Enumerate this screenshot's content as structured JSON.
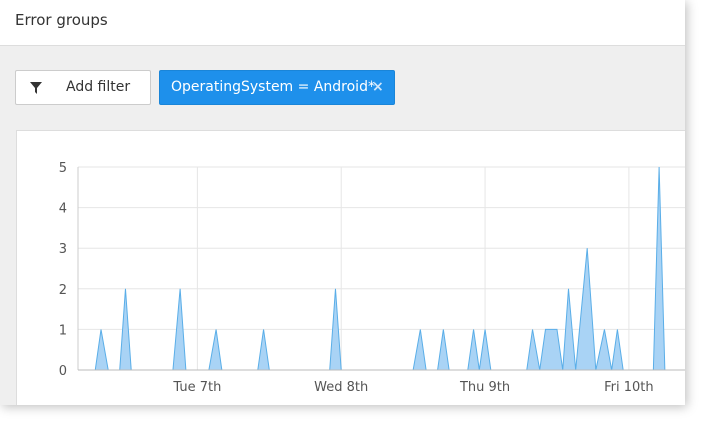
{
  "header": {
    "title": "Error groups"
  },
  "toolbar": {
    "add_filter": "Add filter",
    "active_filter": "OperatingSystem = Android*",
    "remove_filter": "×"
  },
  "chart_data": {
    "type": "area",
    "color": "#a9d3f5",
    "line_color": "#5aaee8",
    "x": [
      6.17,
      6.29,
      6.33,
      6.38,
      6.46,
      6.5,
      6.54,
      6.83,
      6.88,
      6.92,
      7.08,
      7.13,
      7.17,
      7.42,
      7.46,
      7.5,
      7.92,
      7.96,
      8.0,
      8.5,
      8.55,
      8.59,
      8.67,
      8.71,
      8.75,
      8.88,
      8.92,
      8.96,
      9.0,
      9.04,
      9.29,
      9.33,
      9.38,
      9.42,
      9.5,
      9.54,
      9.58,
      9.63,
      9.71,
      9.77,
      9.83,
      9.88,
      9.92,
      9.96,
      10.17,
      10.21,
      10.25,
      10.39
    ],
    "values": [
      0,
      0,
      1,
      0,
      0,
      2,
      0,
      0,
      2,
      0,
      0,
      1,
      0,
      0,
      1,
      0,
      0,
      2,
      0,
      0,
      1,
      0,
      0,
      1,
      0,
      0,
      1,
      0,
      1,
      0,
      0,
      1,
      0,
      1,
      1,
      0,
      2,
      0,
      3,
      0,
      1,
      0,
      1,
      0,
      0,
      5,
      0,
      0
    ],
    "xlim": [
      6.17,
      10.39
    ],
    "xticks": [
      {
        "value": 7,
        "label": "Tue 7th"
      },
      {
        "value": 8,
        "label": "Wed 8th"
      },
      {
        "value": 9,
        "label": "Thu 9th"
      },
      {
        "value": 10,
        "label": "Fri 10th"
      }
    ],
    "ylim": [
      0,
      5
    ],
    "yticks": [
      0,
      1,
      2,
      3,
      4,
      5
    ],
    "grid": true
  }
}
